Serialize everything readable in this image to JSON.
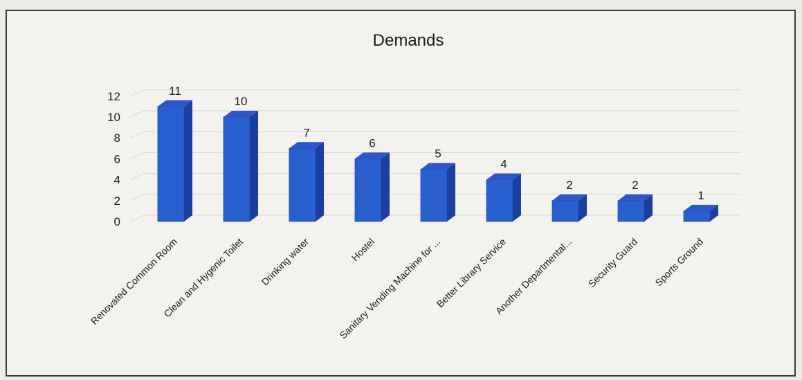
{
  "chart_data": {
    "type": "bar",
    "title": "Demands",
    "categories": [
      "Renovated Common Room",
      "Clean and Hygenic Toilet",
      "Drinking water",
      "Hostel",
      "Sanitary Vending Machine for ...",
      "Better Library Service",
      "Another Departmental...",
      "Security Guard",
      "Sports Ground"
    ],
    "values": [
      11,
      10,
      7,
      6,
      5,
      4,
      2,
      2,
      1
    ],
    "ylim": [
      0,
      12
    ],
    "yticks": [
      "0",
      "2",
      "4",
      "6",
      "8",
      "10",
      "12"
    ],
    "xlabel": "",
    "ylabel": "",
    "grid": true,
    "legend": "none",
    "bar_color": "#2a5fd0",
    "bar_top_color": "#2f56c6",
    "bar_side_color": "#1a3f9e"
  }
}
